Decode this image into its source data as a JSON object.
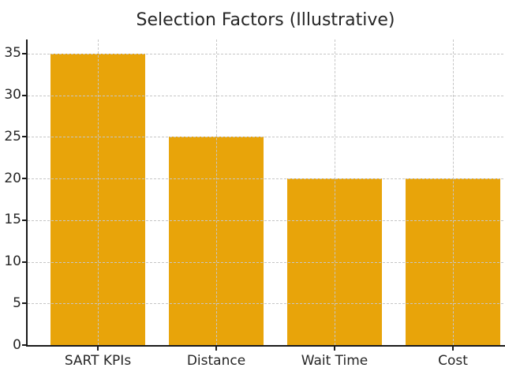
{
  "chart_data": {
    "type": "bar",
    "title": "Selection Factors (Illustrative)",
    "categories": [
      "SART KPIs",
      "Distance",
      "Wait Time",
      "Cost"
    ],
    "values": [
      35,
      25,
      20,
      20
    ],
    "xlabel": "",
    "ylabel": "",
    "ylim": [
      0,
      36.7
    ],
    "yticks": [
      0,
      5,
      10,
      15,
      20,
      25,
      30,
      35
    ],
    "grid": true,
    "grid_style": "dashed",
    "legend": "none",
    "bar_color": "#E8A40A",
    "grid_color": "#c6c6c6",
    "axis_color": "#1a1a1a",
    "text_color": "#262626",
    "background_color": "#ffffff"
  }
}
